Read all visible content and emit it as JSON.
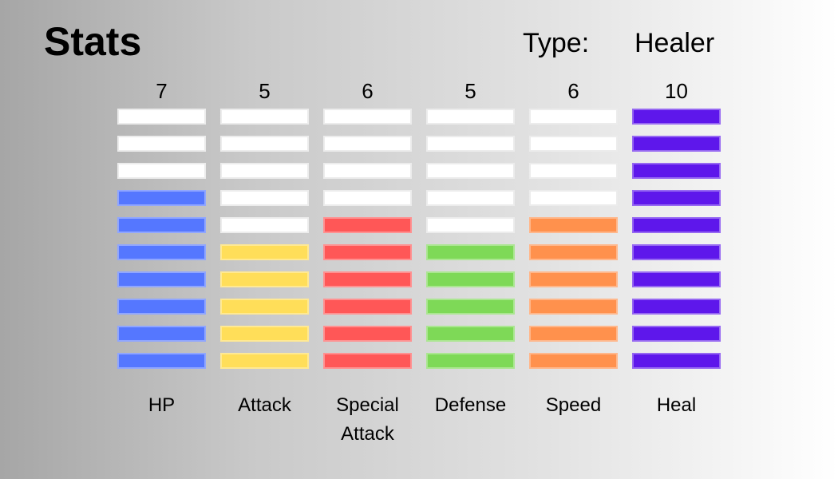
{
  "header": {
    "title": "Stats",
    "type_label": "Type:",
    "type_value": "Healer"
  },
  "bar_count": 10,
  "empty_color": "#ffffff",
  "stats": [
    {
      "name": "HP",
      "value": "7",
      "color": "#5577ff"
    },
    {
      "name": "Attack",
      "value": "5",
      "color": "#ffde59"
    },
    {
      "name": "Special Attack",
      "value": "6",
      "color": "#ff5757"
    },
    {
      "name": "Defense",
      "value": "5",
      "color": "#7ed957"
    },
    {
      "name": "Speed",
      "value": "6",
      "color": "#ff914d"
    },
    {
      "name": "Heal",
      "value": "10",
      "color": "#5e17eb"
    }
  ]
}
